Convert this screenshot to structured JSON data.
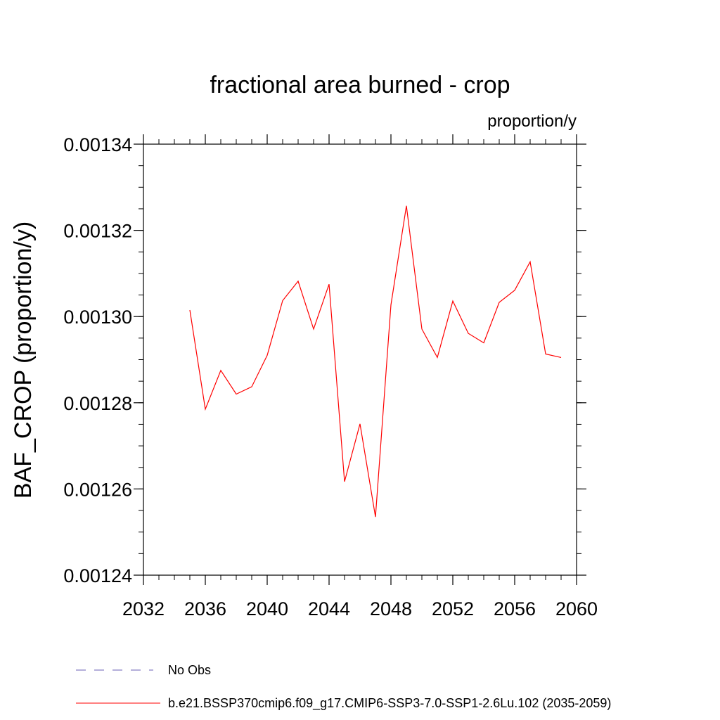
{
  "chart_data": {
    "type": "line",
    "title": "fractional area burned - crop",
    "units": "proportion/y",
    "xlabel": "",
    "ylabel": "BAF_CROP  (proportion/y)",
    "xlim": [
      2032,
      2060
    ],
    "ylim": [
      0.00124,
      0.00134
    ],
    "x_ticks": [
      2032,
      2036,
      2040,
      2044,
      2048,
      2052,
      2056,
      2060
    ],
    "x_tick_labels": [
      "2032",
      "2036",
      "2040",
      "2044",
      "2048",
      "2052",
      "2056",
      "2060"
    ],
    "y_ticks": [
      0.00124,
      0.00126,
      0.00128,
      0.0013,
      0.00132,
      0.00134
    ],
    "y_tick_labels": [
      "0.00124",
      "0.00126",
      "0.00128",
      "0.00130",
      "0.00132",
      "0.00134"
    ],
    "x_minor_step": 1,
    "y_minor_step": 5e-06,
    "grid": false,
    "legend_position": "bottom",
    "series": [
      {
        "name": "b.e21.BSSP370cmip6.f09_g17.CMIP6-SSP3-7.0-SSP1-2.6Lu.102 (2035-2059)",
        "color": "#ff0000",
        "style": "solid",
        "x": [
          2035,
          2036,
          2037,
          2038,
          2039,
          2040,
          2041,
          2042,
          2043,
          2044,
          2045,
          2046,
          2047,
          2048,
          2049,
          2050,
          2051,
          2052,
          2053,
          2054,
          2055,
          2056,
          2057,
          2058,
          2059
        ],
        "values": [
          0.0013015,
          0.0012785,
          0.0012875,
          0.001282,
          0.0012837,
          0.001291,
          0.0013037,
          0.0013082,
          0.0012971,
          0.0013075,
          0.0012617,
          0.0012751,
          0.0012535,
          0.0013027,
          0.0013257,
          0.0012971,
          0.0012905,
          0.0013036,
          0.0012961,
          0.0012939,
          0.0013033,
          0.0013061,
          0.0013127,
          0.0012913,
          0.0012905
        ]
      }
    ],
    "legend": [
      {
        "label": "No Obs",
        "color": "#6a5fb5",
        "style": "dashed"
      },
      {
        "label": "b.e21.BSSP370cmip6.f09_g17.CMIP6-SSP3-7.0-SSP1-2.6Lu.102 (2035-2059)",
        "color": "#ff0000",
        "style": "solid"
      }
    ]
  }
}
